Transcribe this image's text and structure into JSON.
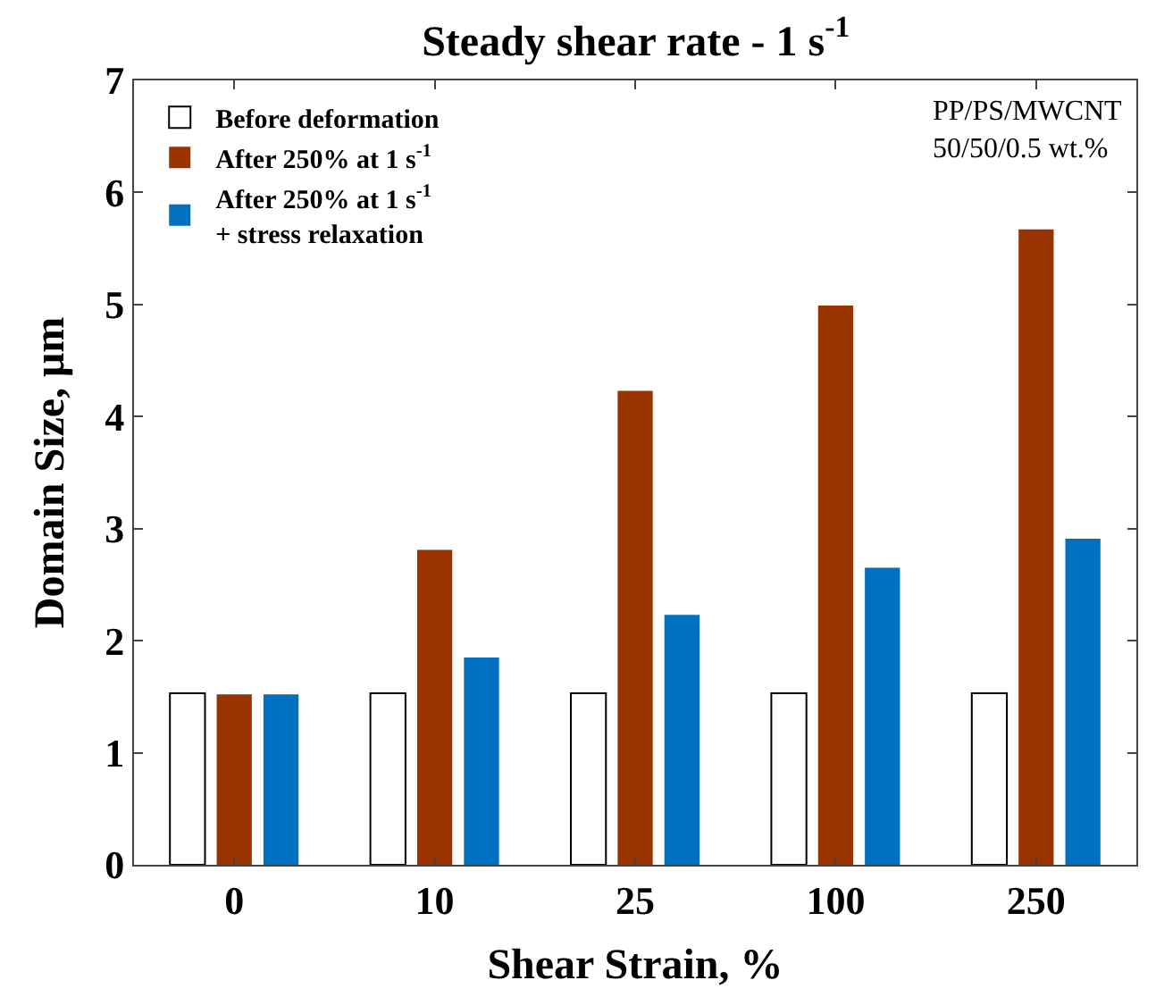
{
  "chart_data": {
    "type": "bar",
    "title": "Steady shear rate - 1 s$^{-1}$",
    "xlabel": "Shear Strain, %",
    "ylabel": "Domain Size, μm",
    "categories": [
      "0",
      "10",
      "25",
      "100",
      "250"
    ],
    "series": [
      {
        "name": "Before deformation",
        "color": "#ffffff",
        "values": [
          1.53,
          1.53,
          1.53,
          1.53,
          1.53
        ]
      },
      {
        "name": "After 250% at 1 s$^{-1}$",
        "color": "#993300",
        "values": [
          1.52,
          2.81,
          4.23,
          4.99,
          5.67
        ]
      },
      {
        "name": "After 250% at 1 s$^{-1}$\n+ stress relaxation",
        "color": "#0070c0",
        "values": [
          1.52,
          1.85,
          2.23,
          2.65,
          2.91
        ]
      }
    ],
    "ylim": [
      0,
      7
    ],
    "yticks": [
      0,
      1,
      2,
      3,
      4,
      5,
      6,
      7
    ],
    "legend": "top left",
    "annotations": [
      "PP/PS/MWCNT\n50/50/0.5 wt.%"
    ]
  }
}
